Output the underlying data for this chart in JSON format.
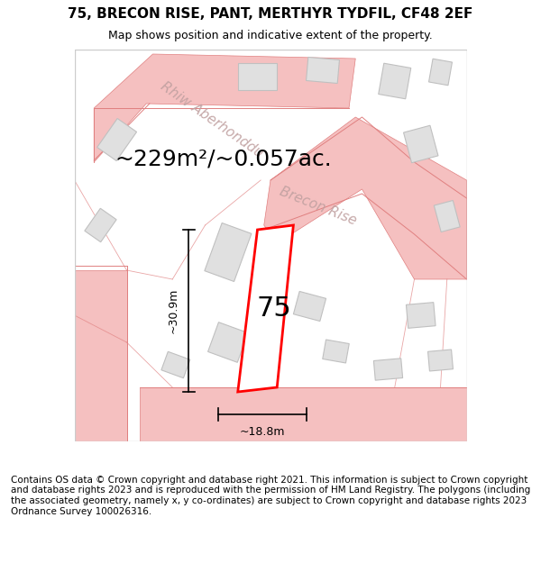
{
  "title_line1": "75, BRECON RISE, PANT, MERTHYR TYDFIL, CF48 2EF",
  "title_line2": "Map shows position and indicative extent of the property.",
  "area_text": "~229m²/~0.057ac.",
  "number_label": "75",
  "dim_height": "~30.9m",
  "dim_width": "~18.8m",
  "street_label1": "Rhiw Aberhonddu",
  "street_label2": "Brecon Rise",
  "footer_text": "Contains OS data © Crown copyright and database right 2021. This information is subject to Crown copyright and database rights 2023 and is reproduced with the permission of HM Land Registry. The polygons (including the associated geometry, namely x, y co-ordinates) are subject to Crown copyright and database rights 2023 Ordnance Survey 100026316.",
  "bg_color": "#f5f0f0",
  "map_bg": "#ffffff",
  "road_color": "#f5c0c0",
  "road_line_color": "#e08080",
  "building_fill": "#e0e0e0",
  "building_edge": "#c0c0c0",
  "plot_fill": "#ffffff",
  "plot_edge": "#ff0000",
  "dim_line_color": "#000000",
  "text_color": "#000000",
  "street_text_color": "#c0a0a0",
  "title_fontsize": 11,
  "subtitle_fontsize": 9,
  "area_fontsize": 18,
  "number_fontsize": 22,
  "dim_fontsize": 9,
  "street_fontsize": 11,
  "footer_fontsize": 7.5
}
